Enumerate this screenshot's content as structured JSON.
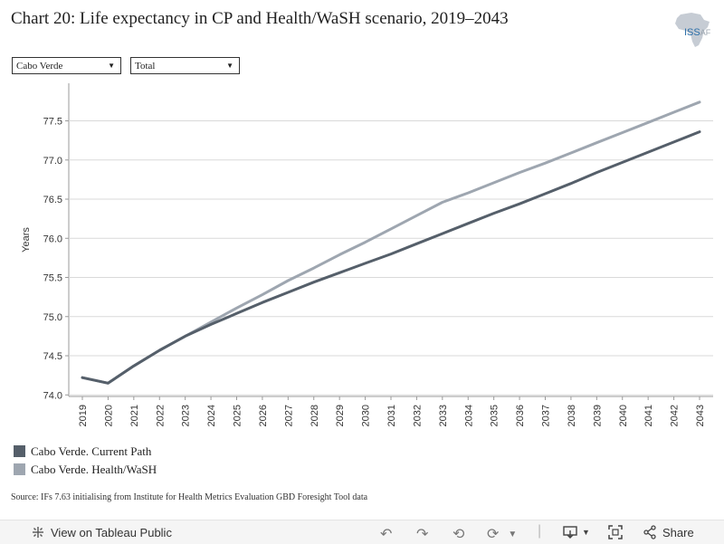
{
  "header": {
    "title": "Chart 20: Life expectancy in CP and Health/WaSH scenario, 2019–2043",
    "logo_text": "ISS",
    "logo_suffix": "AF"
  },
  "filters": {
    "country": "Cabo Verde",
    "measure": "Total"
  },
  "legend": {
    "current_path": "Cabo Verde. Current Path",
    "health_wash": "Cabo Verde. Health/WaSH"
  },
  "source": "Source: IFs 7.63 initialising from Institute for Health Metrics Evaluation GBD Foresight Tool data",
  "footer": {
    "view_label": "View on Tableau Public",
    "share_label": "Share"
  },
  "colors": {
    "current_path": "#555f6a",
    "health_wash": "#9ea6b0",
    "grid": "#d9d9d9"
  },
  "chart_data": {
    "type": "line",
    "title": "",
    "xlabel": "",
    "ylabel": "Years",
    "ylim": [
      73.98,
      77.98
    ],
    "yticks": [
      "74.0",
      "74.5",
      "75.0",
      "75.5",
      "76.0",
      "76.5",
      "77.0",
      "77.5"
    ],
    "x": [
      "2019",
      "2020",
      "2021",
      "2022",
      "2023",
      "2024",
      "2025",
      "2026",
      "2027",
      "2028",
      "2029",
      "2030",
      "2031",
      "2032",
      "2033",
      "2034",
      "2035",
      "2036",
      "2037",
      "2038",
      "2039",
      "2040",
      "2041",
      "2042",
      "2043"
    ],
    "grid": true,
    "series": [
      {
        "name": "Cabo Verde. Current Path",
        "values": [
          74.22,
          74.15,
          74.37,
          74.57,
          74.75,
          74.9,
          75.04,
          75.18,
          75.31,
          75.44,
          75.56,
          75.68,
          75.8,
          75.93,
          76.06,
          76.19,
          76.32,
          76.44,
          76.57,
          76.7,
          76.84,
          76.97,
          77.1,
          77.23,
          77.36
        ]
      },
      {
        "name": "Cabo Verde. Health/WaSH",
        "values": [
          74.22,
          74.15,
          74.37,
          74.57,
          74.75,
          74.93,
          75.11,
          75.28,
          75.46,
          75.62,
          75.79,
          75.95,
          76.12,
          76.29,
          76.46,
          76.58,
          76.71,
          76.84,
          76.96,
          77.09,
          77.22,
          77.35,
          77.48,
          77.61,
          77.74
        ]
      }
    ]
  }
}
